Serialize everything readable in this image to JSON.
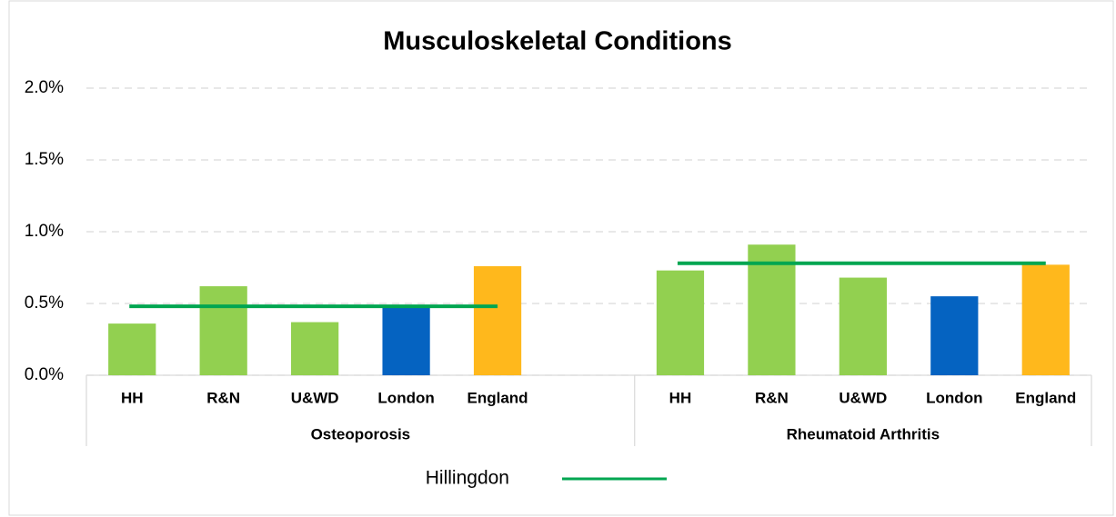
{
  "chart_data": {
    "type": "bar",
    "title": "Musculoskeletal Conditions",
    "groups": [
      {
        "name": "Osteoporosis",
        "categories": [
          "HH",
          "R&N",
          "U&WD",
          "London",
          "England",
          null
        ],
        "values": [
          0.36,
          0.62,
          0.37,
          0.48,
          0.76,
          null
        ],
        "colors": [
          "#92d050",
          "#92d050",
          "#92d050",
          "#0563c1",
          "#ffb81c",
          null
        ]
      },
      {
        "name": "Rheumatoid Arthritis",
        "categories": [
          "HH",
          "R&N",
          "U&WD",
          "London",
          "England"
        ],
        "values": [
          0.73,
          0.91,
          0.68,
          0.55,
          0.77
        ],
        "colors": [
          "#92d050",
          "#92d050",
          "#92d050",
          "#0563c1",
          "#ffb81c"
        ]
      }
    ],
    "series": [
      {
        "name": "Hillingdon",
        "type": "line",
        "color": "#00a651",
        "values": [
          0.48,
          0.78
        ]
      }
    ],
    "ylim": [
      0,
      2
    ],
    "yticks": [
      {
        "value": 0,
        "label": "0.0%"
      },
      {
        "value": 0.5,
        "label": "0.5%"
      },
      {
        "value": 1,
        "label": "1.0%"
      },
      {
        "value": 1.5,
        "label": "1.5%"
      },
      {
        "value": 2,
        "label": "2.0%"
      }
    ],
    "grid": true,
    "legend": "bottom"
  }
}
